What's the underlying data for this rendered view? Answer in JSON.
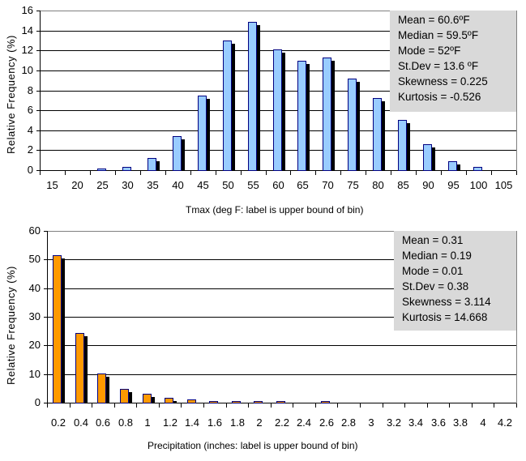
{
  "chart_data": [
    {
      "type": "bar",
      "title": "",
      "xlabel": "Tmax (deg F: label is upper bound of bin)",
      "ylabel": "Relative Frequency (%)",
      "ylim": [
        0,
        16
      ],
      "yticks": [
        "0",
        "2",
        "4",
        "6",
        "8",
        "10",
        "12",
        "14",
        "16"
      ],
      "grid": true,
      "bar_color": "#99ccff",
      "categories": [
        "15",
        "20",
        "25",
        "30",
        "35",
        "40",
        "45",
        "50",
        "55",
        "60",
        "65",
        "70",
        "75",
        "80",
        "85",
        "90",
        "95",
        "100",
        "105"
      ],
      "values": [
        0,
        0,
        0.05,
        0.3,
        1.2,
        3.4,
        7.5,
        13.0,
        14.9,
        12.1,
        11.0,
        11.3,
        9.2,
        7.2,
        5.0,
        2.6,
        0.9,
        0.3,
        0
      ],
      "annotation": [
        "Mean = 60.6ºF",
        "Median = 59.5ºF",
        "Mode = 52ºF",
        "St.Dev = 13.6 ºF",
        "Skewness = 0.225",
        "Kurtosis = -0.526"
      ]
    },
    {
      "type": "bar",
      "title": "",
      "xlabel": "Precipitation (inches: label is upper bound of bin)",
      "ylabel": "Relative Frequency (%)",
      "ylim": [
        0,
        60
      ],
      "yticks": [
        "0",
        "10",
        "20",
        "30",
        "40",
        "50",
        "60"
      ],
      "grid": true,
      "bar_color": "#ff9900",
      "categories": [
        "0.2",
        "0.4",
        "0.6",
        "0.8",
        "1",
        "1.2",
        "1.4",
        "1.6",
        "1.8",
        "2",
        "2.2",
        "2.4",
        "2.6",
        "2.8",
        "3",
        "3.2",
        "3.4",
        "3.6",
        "3.8",
        "4",
        "4.2"
      ],
      "values": [
        51.6,
        24.4,
        10.3,
        4.9,
        3.2,
        1.8,
        1.0,
        0.7,
        0.4,
        0.4,
        0.4,
        0,
        0.4,
        0,
        0,
        0,
        0,
        0,
        0,
        0,
        0
      ],
      "annotation": [
        "Mean = 0.31",
        "Median = 0.19",
        "Mode = 0.01",
        "St.Dev = 0.38",
        "Skewness = 3.114",
        "Kurtosis = 14.668"
      ]
    }
  ]
}
